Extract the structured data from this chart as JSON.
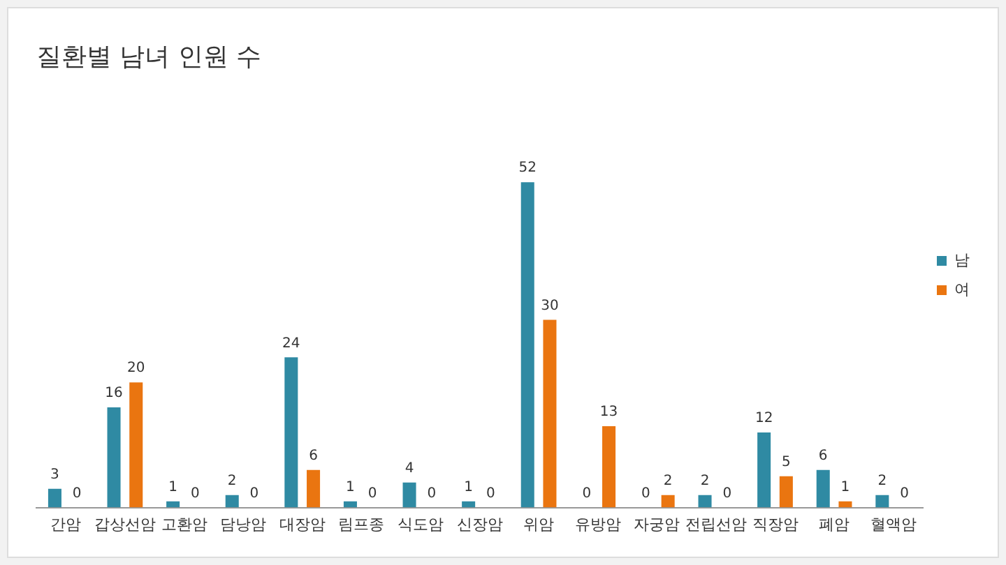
{
  "chart_data": {
    "type": "bar",
    "title": "질환별 남녀 인원 수",
    "categories": [
      "간암",
      "갑상선암",
      "고환암",
      "담낭암",
      "대장암",
      "림프종",
      "식도암",
      "신장암",
      "위암",
      "유방암",
      "자궁암",
      "전립선암",
      "직장암",
      "폐암",
      "혈액암"
    ],
    "series": [
      {
        "name": "남",
        "color": "#2f8aa3",
        "values": [
          3,
          16,
          1,
          2,
          24,
          1,
          4,
          1,
          52,
          0,
          0,
          2,
          12,
          6,
          2
        ]
      },
      {
        "name": "여",
        "color": "#ea7510",
        "values": [
          0,
          20,
          0,
          0,
          6,
          0,
          0,
          0,
          30,
          13,
          2,
          0,
          5,
          1,
          0
        ]
      }
    ],
    "data_labels": true,
    "grid": false,
    "legend": "right"
  }
}
